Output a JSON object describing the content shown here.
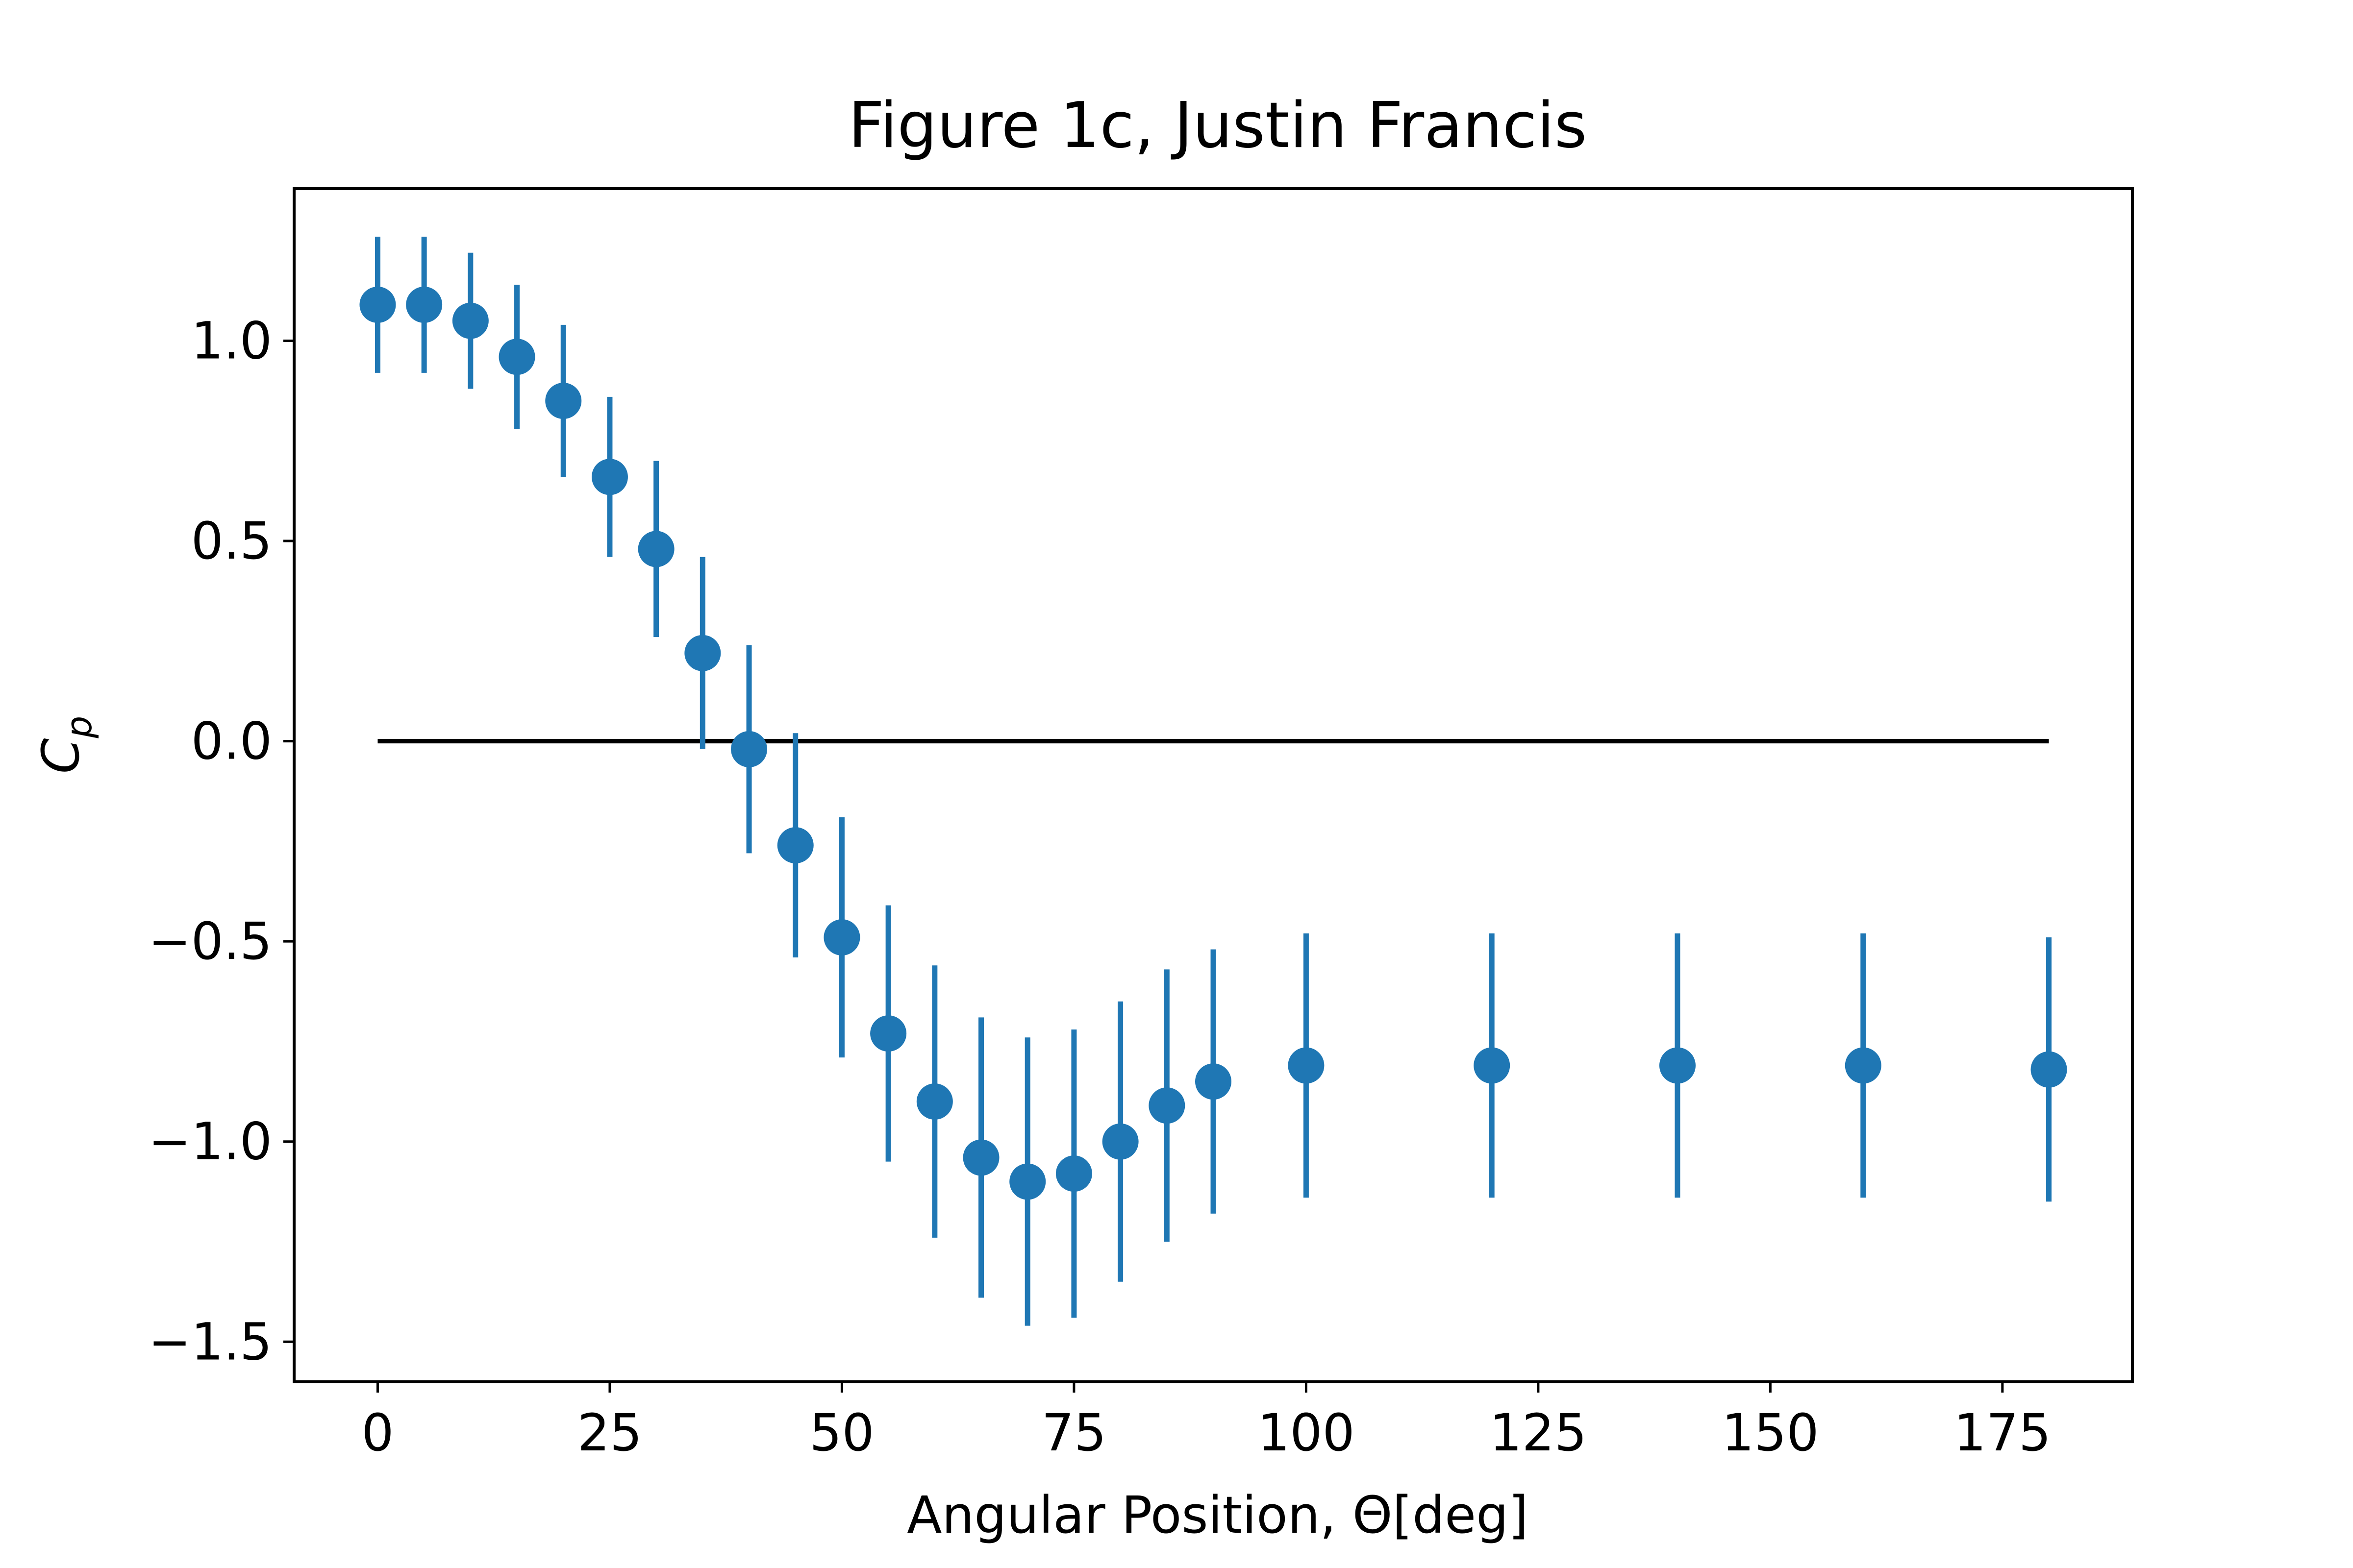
{
  "chart_data": {
    "type": "scatter",
    "title": "Figure 1c, Justin Francis",
    "xlabel": "Angular Position, Θ[deg]",
    "ylabel": "C",
    "ylabel_subscript": "p",
    "xlim": [
      -9,
      189
    ],
    "ylim": [
      -1.6,
      1.38
    ],
    "xticks": [
      0,
      25,
      50,
      75,
      100,
      125,
      150,
      175
    ],
    "xtick_labels": [
      "0",
      "25",
      "50",
      "75",
      "100",
      "125",
      "150",
      "175"
    ],
    "yticks": [
      1.0,
      0.5,
      0.0,
      -0.5,
      -1.0,
      -1.5
    ],
    "ytick_labels": [
      "1.0",
      "0.5",
      "0.0",
      "−0.5",
      "−1.0",
      "−1.5"
    ],
    "grid": false,
    "reference_line": {
      "y": 0,
      "x_range": [
        0,
        180
      ],
      "color": "#000000"
    },
    "series": [
      {
        "color": "#1f77b4",
        "x": [
          0,
          5,
          10,
          15,
          20,
          25,
          30,
          35,
          40,
          45,
          50,
          55,
          60,
          65,
          70,
          75,
          80,
          85,
          90,
          100,
          120,
          140,
          160,
          180
        ],
        "y": [
          1.09,
          1.09,
          1.05,
          0.96,
          0.85,
          0.66,
          0.48,
          0.22,
          -0.02,
          -0.26,
          -0.49,
          -0.73,
          -0.9,
          -1.04,
          -1.1,
          -1.08,
          -1.0,
          -0.91,
          -0.85,
          -0.81,
          -0.81,
          -0.81,
          -0.81,
          -0.82
        ],
        "yerr": [
          0.17,
          0.17,
          0.17,
          0.18,
          0.19,
          0.2,
          0.22,
          0.24,
          0.26,
          0.28,
          0.3,
          0.32,
          0.34,
          0.35,
          0.36,
          0.36,
          0.35,
          0.34,
          0.33,
          0.33,
          0.33,
          0.33,
          0.33,
          0.33
        ]
      }
    ]
  }
}
